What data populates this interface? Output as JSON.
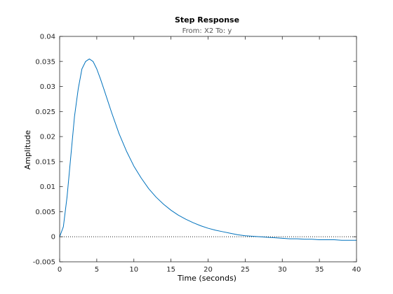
{
  "chart_data": {
    "type": "line",
    "title": "Step Response",
    "subtitle": "From: X2  To: y",
    "xlabel": "Time (seconds)",
    "ylabel": "Amplitude",
    "xlim": [
      0,
      40
    ],
    "ylim": [
      -0.005,
      0.04
    ],
    "xticks": [
      0,
      5,
      10,
      15,
      20,
      25,
      30,
      35,
      40
    ],
    "xtick_labels": [
      "0",
      "5",
      "10",
      "15",
      "20",
      "25",
      "30",
      "35",
      "40"
    ],
    "yticks": [
      -0.005,
      0,
      0.005,
      0.01,
      0.015,
      0.02,
      0.025,
      0.03,
      0.035,
      0.04
    ],
    "ytick_labels": [
      "-0.005",
      "0",
      "0.005",
      "0.01",
      "0.015",
      "0.02",
      "0.025",
      "0.03",
      "0.035",
      "0.04"
    ],
    "grid": false,
    "reference_line": {
      "y": 0,
      "style": "dotted",
      "color": "#000000"
    },
    "series": [
      {
        "color": "#0072BD",
        "x": [
          0,
          0.5,
          1,
          1.5,
          2,
          2.5,
          3,
          3.5,
          4,
          4.5,
          5,
          5.5,
          6,
          7,
          8,
          9,
          10,
          11,
          12,
          13,
          14,
          15,
          16,
          17,
          18,
          19,
          20,
          21,
          22,
          23,
          24,
          25,
          26,
          27,
          28,
          29,
          30,
          31,
          32,
          33,
          34,
          35,
          36,
          37,
          38,
          39,
          40
        ],
        "y": [
          0,
          0.002,
          0.008,
          0.016,
          0.024,
          0.0295,
          0.0335,
          0.035,
          0.0355,
          0.035,
          0.0335,
          0.0315,
          0.0293,
          0.0248,
          0.0206,
          0.0171,
          0.0141,
          0.0117,
          0.0096,
          0.0079,
          0.0065,
          0.0053,
          0.0043,
          0.0035,
          0.0028,
          0.0022,
          0.0017,
          0.0013,
          0.001,
          0.0007,
          0.0004,
          0.0002,
          0.0001,
          0.0,
          -0.0001,
          -0.0002,
          -0.0003,
          -0.0004,
          -0.0004,
          -0.0005,
          -0.0005,
          -0.0006,
          -0.0006,
          -0.0006,
          -0.0007,
          -0.0007,
          -0.0007
        ]
      }
    ]
  }
}
